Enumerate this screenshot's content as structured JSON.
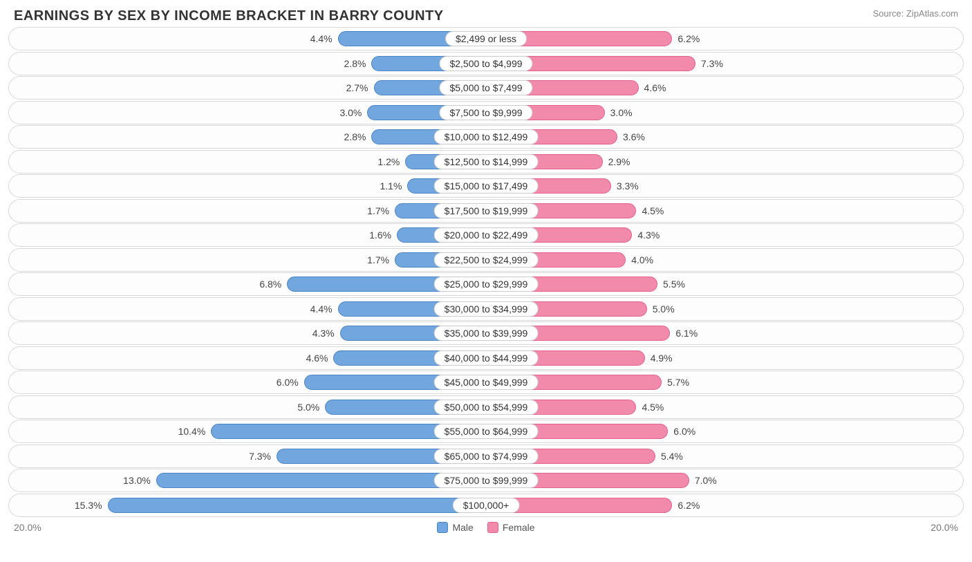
{
  "title": "EARNINGS BY SEX BY INCOME BRACKET IN BARRY COUNTY",
  "source": "Source: ZipAtlas.com",
  "axis_max_label": "20.0%",
  "axis_max_value": 20.0,
  "legend": {
    "male": {
      "label": "Male",
      "color": "#72a6de",
      "border": "#4a84c4"
    },
    "female": {
      "label": "Female",
      "color": "#f28bab",
      "border": "#e35f8c"
    }
  },
  "row_style": {
    "track_border": "#d8d8d8",
    "track_bg": "#fdfdfd",
    "label_border": "#cccccc",
    "label_bg": "#ffffff",
    "text_color": "#444444"
  },
  "rows": [
    {
      "category": "$2,499 or less",
      "male": 4.4,
      "female": 6.2
    },
    {
      "category": "$2,500 to $4,999",
      "male": 2.8,
      "female": 7.3
    },
    {
      "category": "$5,000 to $7,499",
      "male": 2.7,
      "female": 4.6
    },
    {
      "category": "$7,500 to $9,999",
      "male": 3.0,
      "female": 3.0
    },
    {
      "category": "$10,000 to $12,499",
      "male": 2.8,
      "female": 3.6
    },
    {
      "category": "$12,500 to $14,999",
      "male": 1.2,
      "female": 2.9
    },
    {
      "category": "$15,000 to $17,499",
      "male": 1.1,
      "female": 3.3
    },
    {
      "category": "$17,500 to $19,999",
      "male": 1.7,
      "female": 4.5
    },
    {
      "category": "$20,000 to $22,499",
      "male": 1.6,
      "female": 4.3
    },
    {
      "category": "$22,500 to $24,999",
      "male": 1.7,
      "female": 4.0
    },
    {
      "category": "$25,000 to $29,999",
      "male": 6.8,
      "female": 5.5
    },
    {
      "category": "$30,000 to $34,999",
      "male": 4.4,
      "female": 5.0
    },
    {
      "category": "$35,000 to $39,999",
      "male": 4.3,
      "female": 6.1
    },
    {
      "category": "$40,000 to $44,999",
      "male": 4.6,
      "female": 4.9
    },
    {
      "category": "$45,000 to $49,999",
      "male": 6.0,
      "female": 5.7
    },
    {
      "category": "$50,000 to $54,999",
      "male": 5.0,
      "female": 4.5
    },
    {
      "category": "$55,000 to $64,999",
      "male": 10.4,
      "female": 6.0
    },
    {
      "category": "$65,000 to $74,999",
      "male": 7.3,
      "female": 5.4
    },
    {
      "category": "$75,000 to $99,999",
      "male": 13.0,
      "female": 7.0
    },
    {
      "category": "$100,000+",
      "male": 15.3,
      "female": 6.2
    }
  ]
}
